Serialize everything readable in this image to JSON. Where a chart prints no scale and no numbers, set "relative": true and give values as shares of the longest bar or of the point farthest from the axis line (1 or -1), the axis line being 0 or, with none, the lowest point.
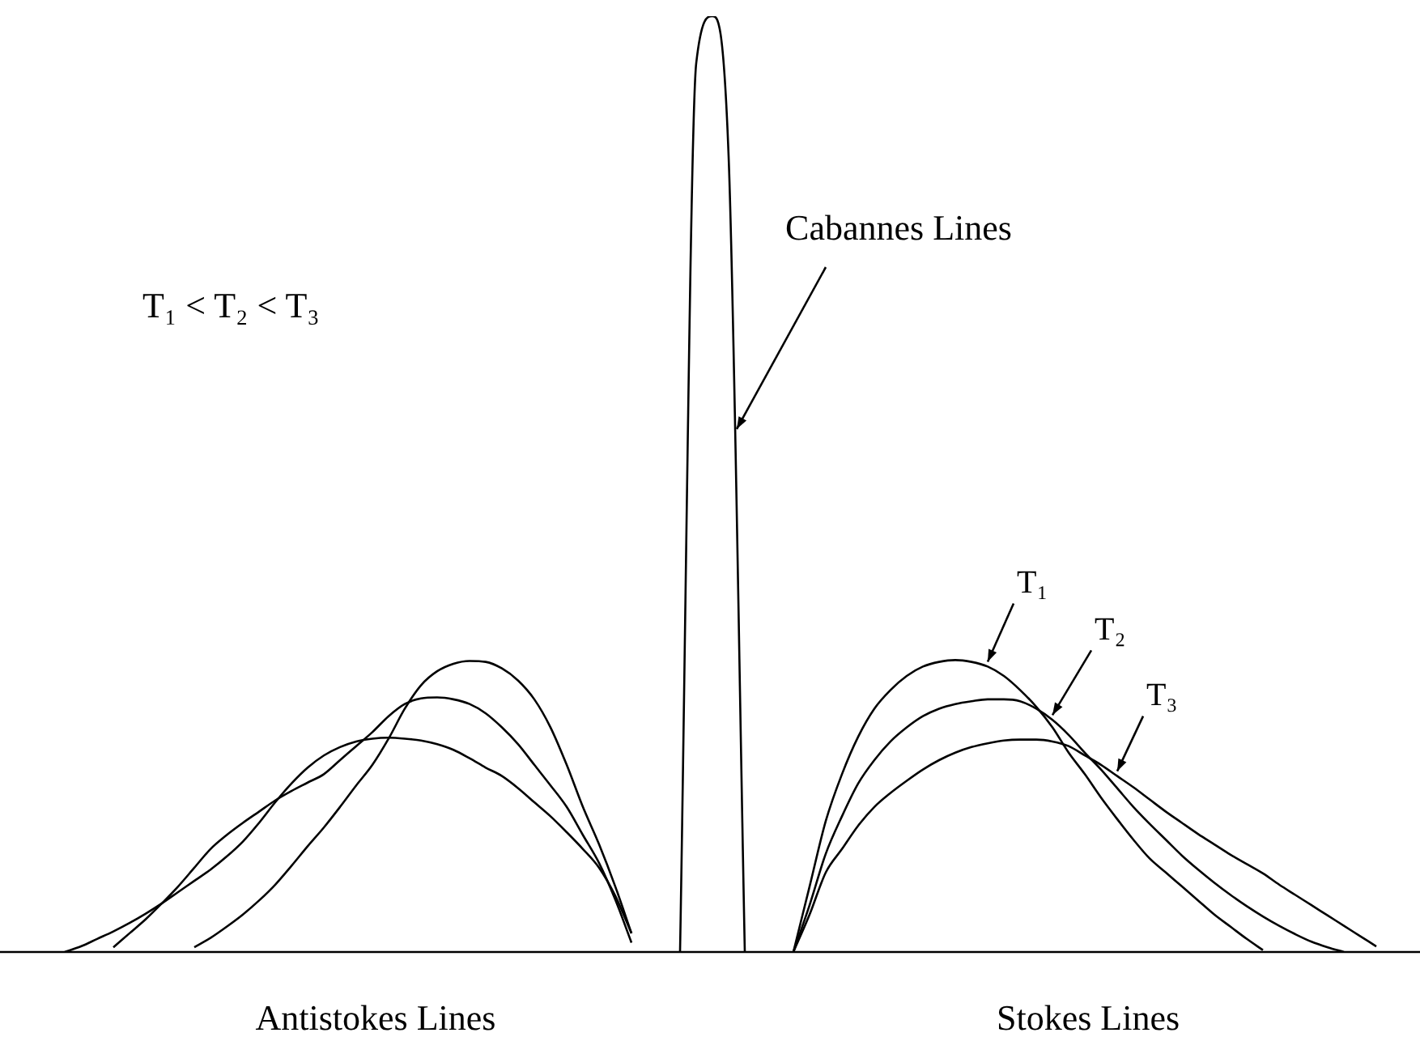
{
  "chart_data": {
    "type": "line",
    "relative": true,
    "categories": [
      null,
      null,
      null,
      null,
      null,
      null,
      null,
      null,
      null,
      null,
      null,
      null,
      null,
      null,
      null,
      null,
      null,
      null,
      null,
      null,
      null,
      null,
      null,
      null,
      null,
      null,
      null,
      null,
      null,
      null,
      null,
      null,
      null,
      null,
      null,
      null,
      null,
      null,
      null,
      null,
      null,
      null,
      null,
      null,
      null,
      null,
      null,
      null,
      null,
      null,
      null,
      null,
      null,
      null,
      null,
      null,
      null,
      null,
      null,
      null,
      null,
      null,
      null,
      null,
      null,
      null,
      null,
      null,
      null,
      null,
      null,
      null,
      null,
      null,
      null,
      null,
      null,
      null,
      null,
      null,
      null,
      null,
      null
    ],
    "series": [
      {
        "color": "#000000",
        "values": [
          0,
          0.006,
          0.014,
          0.022,
          0.031,
          0.041,
          0.052,
          0.064,
          0.076,
          0.088,
          0.102,
          0.118,
          0.138,
          0.16,
          0.18,
          0.197,
          0.21,
          0.219,
          0.225,
          0.228,
          0.229,
          0.228,
          0.226,
          0.222,
          0.216,
          0.207,
          0.197,
          0.188,
          0.175,
          0.16,
          0.145,
          0.128,
          0.11,
          0.09,
          0.06,
          0.02,
          null,
          null,
          null,
          null,
          null,
          null,
          null,
          null,
          null,
          null,
          null,
          null,
          null,
          null,
          null,
          null,
          null,
          null,
          null,
          null,
          null,
          null,
          null,
          null,
          null,
          null,
          null,
          null,
          null,
          null,
          null,
          null,
          null,
          null,
          null,
          null,
          null,
          null,
          null,
          null,
          null,
          null,
          null,
          null,
          null,
          null,
          null
        ]
      },
      {
        "color": "#000000",
        "values": [
          null,
          null,
          null,
          0.005,
          0.02,
          0.035,
          0.052,
          0.07,
          0.09,
          0.11,
          0.125,
          0.138,
          0.15,
          0.162,
          0.172,
          0.181,
          0.19,
          0.205,
          0.22,
          0.235,
          0.252,
          0.265,
          0.271,
          0.272,
          0.27,
          0.265,
          0.255,
          0.24,
          0.222,
          0.2,
          0.178,
          0.155,
          0.125,
          0.095,
          0.056,
          0.01,
          null,
          null,
          null,
          null,
          null,
          null,
          null,
          null,
          null,
          null,
          null,
          null,
          null,
          null,
          null,
          null,
          null,
          null,
          null,
          null,
          null,
          null,
          null,
          null,
          null,
          null,
          null,
          null,
          null,
          null,
          null,
          null,
          null,
          null,
          null,
          null,
          null,
          null,
          null,
          null,
          null,
          null,
          null,
          null,
          null,
          null,
          null
        ]
      },
      {
        "color": "#000000",
        "values": [
          null,
          null,
          null,
          null,
          null,
          null,
          null,
          null,
          0.005,
          0.015,
          0.027,
          0.04,
          0.055,
          0.072,
          0.092,
          0.113,
          0.133,
          0.155,
          0.178,
          0.2,
          0.228,
          0.26,
          0.285,
          0.3,
          0.308,
          0.311,
          0.31,
          0.303,
          0.29,
          0.27,
          0.24,
          0.2,
          0.155,
          0.115,
          0.07,
          0.02,
          null,
          null,
          null,
          null,
          null,
          null,
          null,
          null,
          null,
          null,
          null,
          null,
          null,
          null,
          null,
          null,
          null,
          null,
          null,
          null,
          null,
          null,
          null,
          null,
          null,
          null,
          null,
          null,
          null,
          null,
          null,
          null,
          null,
          null,
          null,
          null,
          null,
          null,
          null,
          null,
          null,
          null,
          null,
          null,
          null,
          null,
          null
        ]
      },
      {
        "color": "#000000",
        "values": [
          null,
          null,
          null,
          null,
          null,
          null,
          null,
          null,
          null,
          null,
          null,
          null,
          null,
          null,
          null,
          null,
          null,
          null,
          null,
          null,
          null,
          null,
          null,
          null,
          null,
          null,
          null,
          null,
          null,
          null,
          null,
          null,
          null,
          null,
          null,
          null,
          null,
          null,
          0,
          0.95,
          1,
          0.85,
          0,
          null,
          null,
          null,
          null,
          null,
          null,
          null,
          null,
          null,
          null,
          null,
          null,
          null,
          null,
          null,
          null,
          null,
          null,
          null,
          null,
          null,
          null,
          null,
          null,
          null,
          null,
          null,
          null,
          null,
          null,
          null,
          null,
          null,
          null,
          null,
          null,
          null,
          null,
          null,
          null
        ]
      },
      {
        "name": "T₁",
        "color": "#000000",
        "values": [
          null,
          null,
          null,
          null,
          null,
          null,
          null,
          null,
          null,
          null,
          null,
          null,
          null,
          null,
          null,
          null,
          null,
          null,
          null,
          null,
          null,
          null,
          null,
          null,
          null,
          null,
          null,
          null,
          null,
          null,
          null,
          null,
          null,
          null,
          null,
          null,
          null,
          null,
          null,
          null,
          null,
          null,
          null,
          null,
          null,
          0,
          0.07,
          0.14,
          0.19,
          0.23,
          0.26,
          0.28,
          0.295,
          0.305,
          0.31,
          0.312,
          0.31,
          0.305,
          0.295,
          0.28,
          0.262,
          0.24,
          0.213,
          0.19,
          0.165,
          0.142,
          0.12,
          0.1,
          0.085,
          0.07,
          0.055,
          0.04,
          0.027,
          0.014,
          0.002,
          null,
          null,
          null,
          null,
          null,
          null,
          null,
          null
        ]
      },
      {
        "name": "T₂",
        "color": "#000000",
        "values": [
          null,
          null,
          null,
          null,
          null,
          null,
          null,
          null,
          null,
          null,
          null,
          null,
          null,
          null,
          null,
          null,
          null,
          null,
          null,
          null,
          null,
          null,
          null,
          null,
          null,
          null,
          null,
          null,
          null,
          null,
          null,
          null,
          null,
          null,
          null,
          null,
          null,
          null,
          null,
          null,
          null,
          null,
          null,
          null,
          null,
          0,
          0.05,
          0.105,
          0.145,
          0.18,
          0.205,
          0.225,
          0.24,
          0.252,
          0.26,
          0.265,
          0.268,
          0.27,
          0.27,
          0.268,
          0.26,
          0.248,
          0.232,
          0.213,
          0.195,
          0.175,
          0.155,
          0.137,
          0.12,
          0.103,
          0.088,
          0.074,
          0.061,
          0.049,
          0.038,
          0.028,
          0.019,
          0.011,
          0.005,
          0,
          null,
          null,
          null
        ]
      },
      {
        "name": "T₃",
        "color": "#000000",
        "values": [
          null,
          null,
          null,
          null,
          null,
          null,
          null,
          null,
          null,
          null,
          null,
          null,
          null,
          null,
          null,
          null,
          null,
          null,
          null,
          null,
          null,
          null,
          null,
          null,
          null,
          null,
          null,
          null,
          null,
          null,
          null,
          null,
          null,
          null,
          null,
          null,
          null,
          null,
          null,
          null,
          null,
          null,
          null,
          null,
          null,
          0,
          0.04,
          0.085,
          0.11,
          0.135,
          0.155,
          0.17,
          0.183,
          0.195,
          0.205,
          0.213,
          0.219,
          0.223,
          0.226,
          0.227,
          0.227,
          0.225,
          0.22,
          0.21,
          0.2,
          0.188,
          0.176,
          0.163,
          0.15,
          0.138,
          0.126,
          0.115,
          0.104,
          0.094,
          0.084,
          0.072,
          0.061,
          0.05,
          0.039,
          0.028,
          0.017,
          0.006,
          null
        ]
      }
    ],
    "annotations": [
      "Cabannes Lines",
      "T₁ < T₂ < T₃",
      "Antistokes Lines",
      "Stokes Lines"
    ]
  }
}
